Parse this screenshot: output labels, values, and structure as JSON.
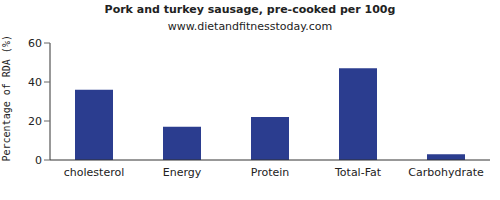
{
  "chart_data": {
    "type": "bar",
    "title": "Pork and turkey sausage, pre-cooked per 100g",
    "subtitle": "www.dietandfitnesstoday.com",
    "y_label": "Percentage of RDA (%)",
    "categories": [
      "cholesterol",
      "Energy",
      "Protein",
      "Total-Fat",
      "Carbohydrate"
    ],
    "values": [
      36,
      17,
      22,
      47,
      3
    ],
    "color": "#2b3d8f",
    "ylim": [
      0,
      60
    ],
    "yticks": [
      0,
      20,
      40,
      60
    ],
    "grid": false
  }
}
